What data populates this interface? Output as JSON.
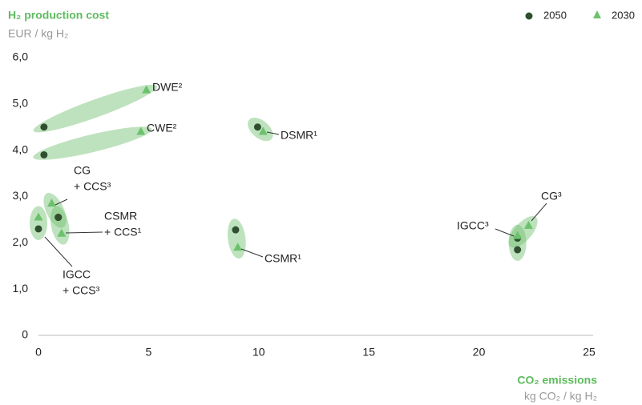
{
  "chart_data": {
    "type": "scatter",
    "title": "H₂ production cost",
    "ylabel": "EUR / kg H₂",
    "xlabel": "CO₂ emissions",
    "xunit": "kg CO₂ / kg H₂",
    "xlim": [
      0,
      25
    ],
    "ylim": [
      0,
      6
    ],
    "xticks": [
      0,
      5,
      10,
      15,
      20,
      25
    ],
    "yticks": [
      0,
      {
        "value": 1,
        "label": "1,0"
      },
      {
        "value": 2,
        "label": "2,0"
      },
      {
        "value": 3,
        "label": "3,0"
      },
      {
        "value": 4,
        "label": "4,0"
      },
      {
        "value": 5,
        "label": "5,0"
      },
      {
        "value": 6,
        "label": "6,0"
      }
    ],
    "legend": "top-right",
    "series": [
      {
        "name": "2050",
        "color": "#2f4f2f",
        "marker": "circle",
        "x": [
          0.25,
          0.25,
          0.9,
          0.9,
          0,
          9.95,
          8.95,
          21.75,
          21.75
        ],
        "y": [
          4.5,
          3.9,
          2.55,
          2.55,
          2.3,
          4.5,
          2.28,
          1.85,
          2.1
        ]
      },
      {
        "name": "2030",
        "color": "#6cc26c",
        "marker": "triangle",
        "x": [
          4.9,
          4.65,
          0.6,
          1.05,
          0,
          10.2,
          9.05,
          21.75,
          22.25
        ],
        "y": [
          5.3,
          4.4,
          2.85,
          2.2,
          2.55,
          4.4,
          1.9,
          2.15,
          2.37
        ]
      }
    ],
    "annotations": [
      {
        "lines": [
          "DWE²"
        ]
      },
      {
        "lines": [
          "CWE²"
        ]
      },
      {
        "lines": [
          "CG",
          "+ CCS³"
        ]
      },
      {
        "lines": [
          "CSMR",
          "+ CCS¹"
        ]
      },
      {
        "lines": [
          "IGCC",
          "+ CCS³"
        ]
      },
      {
        "lines": [
          "DSMR¹"
        ]
      },
      {
        "lines": [
          "CSMR¹"
        ]
      },
      {
        "lines": [
          "IGCC³"
        ]
      },
      {
        "lines": [
          "CG³"
        ]
      }
    ]
  }
}
